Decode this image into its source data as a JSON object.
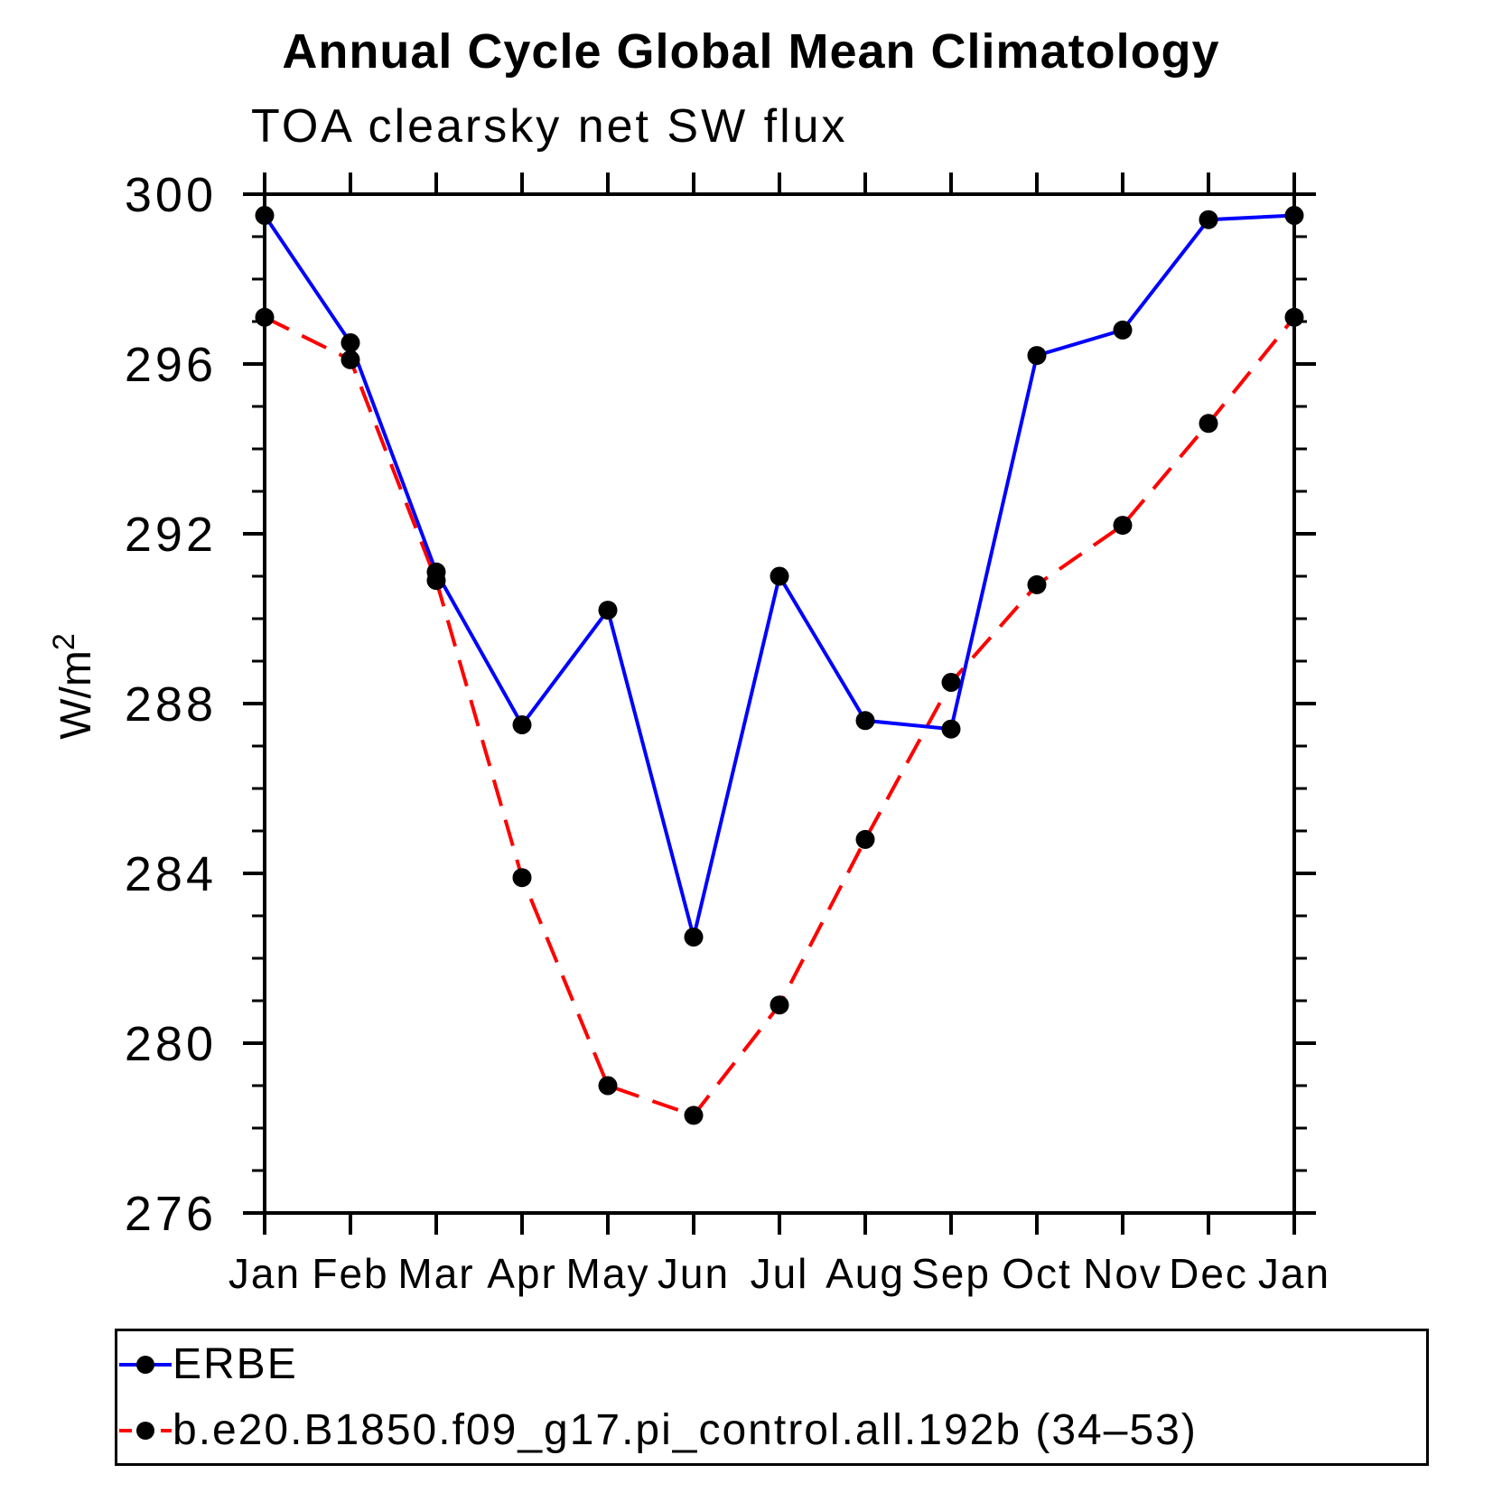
{
  "chart_data": {
    "type": "line",
    "title": "Annual Cycle Global Mean Climatology",
    "subtitle": "TOA clearsky net SW flux",
    "ylabel": "W/m²",
    "ylabel_base": "W/m",
    "ylabel_sup": "2",
    "xlabel": "",
    "categories": [
      "Jan",
      "Feb",
      "Mar",
      "Apr",
      "May",
      "Jun",
      "Jul",
      "Aug",
      "Sep",
      "Oct",
      "Nov",
      "Dec",
      "Jan"
    ],
    "ylim": [
      276,
      300
    ],
    "ytick_major_step": 4,
    "ytick_minor_step": 1,
    "ytick_major_labels": [
      "276",
      "280",
      "284",
      "288",
      "292",
      "296",
      "300"
    ],
    "grid": false,
    "legend_position": "bottom",
    "background_color": "#ffffff",
    "axis_color": "#000000",
    "marker_color": "#000000",
    "series": [
      {
        "name": "ERBE",
        "color": "#0000ff",
        "style": "solid",
        "values": [
          299.5,
          296.5,
          291.1,
          287.5,
          290.2,
          282.5,
          291.0,
          287.6,
          287.4,
          296.2,
          296.8,
          299.4,
          299.5
        ]
      },
      {
        "name": "b.e20.B1850.f09_g17.pi_control.all.192b (34–53)",
        "color": "#ff0000",
        "style": "dashed",
        "values": [
          297.1,
          296.1,
          290.9,
          283.9,
          279.0,
          278.3,
          280.9,
          284.8,
          288.5,
          290.8,
          292.2,
          294.6,
          297.1
        ]
      }
    ]
  }
}
